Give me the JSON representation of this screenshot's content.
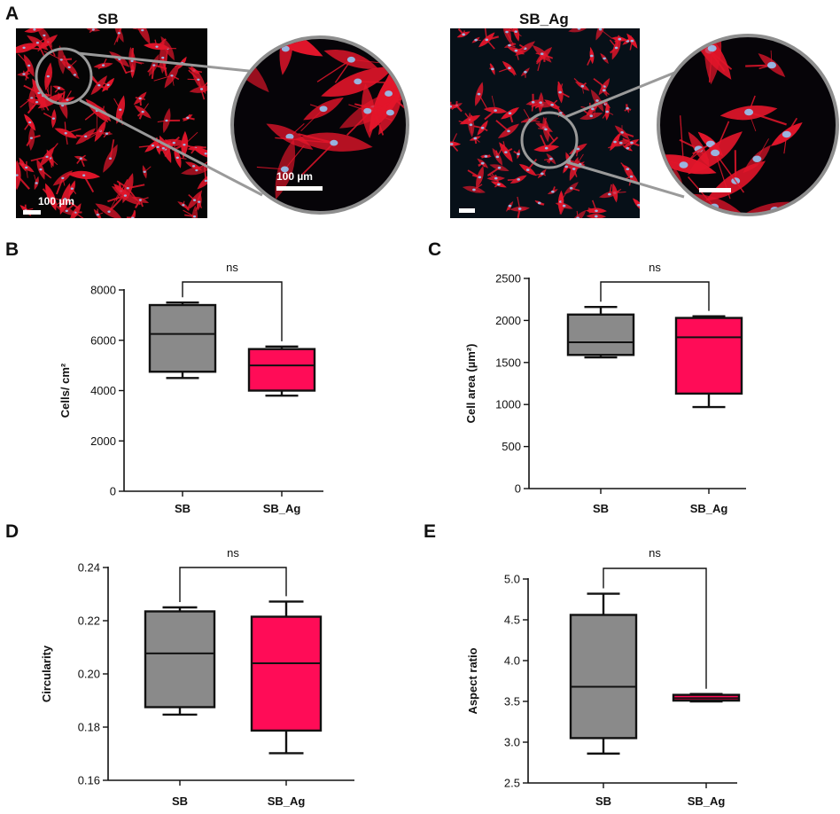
{
  "panels": {
    "A": "A",
    "B": "B",
    "C": "C",
    "D": "D",
    "E": "E"
  },
  "images": {
    "left_title": "SB",
    "right_title": "SB_Ag",
    "scale_label_main": "100 µm",
    "scale_label_zoom": "100 µm"
  },
  "colors": {
    "sb_box": "#8a8a8a",
    "sbag_box": "#ff0c57",
    "stain_red": "#e3162b",
    "stain_nuclei": "#8fd0ff"
  },
  "chart_data": [
    {
      "id": "B",
      "type": "box",
      "categories": [
        "SB",
        "SB_Ag"
      ],
      "ylabel": "Cells/ cm²",
      "ylim": [
        0,
        8000
      ],
      "yticks": [
        0,
        2000,
        4000,
        6000,
        8000
      ],
      "annotation": "ns",
      "series": [
        {
          "category": "SB",
          "min": 4500,
          "q1": 4750,
          "median": 6250,
          "q3": 7400,
          "max": 7500
        },
        {
          "category": "SB_Ag",
          "min": 3800,
          "q1": 4000,
          "median": 5000,
          "q3": 5650,
          "max": 5750
        }
      ]
    },
    {
      "id": "C",
      "type": "box",
      "categories": [
        "SB",
        "SB_Ag"
      ],
      "ylabel": "Cell area (µm²)",
      "ylim": [
        0,
        2500
      ],
      "yticks": [
        0,
        500,
        1000,
        1500,
        2000,
        2500
      ],
      "annotation": "ns",
      "series": [
        {
          "category": "SB",
          "min": 1560,
          "q1": 1590,
          "median": 1740,
          "q3": 2070,
          "max": 2160
        },
        {
          "category": "SB_Ag",
          "min": 970,
          "q1": 1130,
          "median": 1800,
          "q3": 2030,
          "max": 2050
        }
      ]
    },
    {
      "id": "D",
      "type": "box",
      "categories": [
        "SB",
        "SB_Ag"
      ],
      "ylabel": "Circularity",
      "ylim": [
        0.16,
        0.24
      ],
      "yticks": [
        0.16,
        0.18,
        0.2,
        0.22,
        0.24
      ],
      "annotation": "ns",
      "series": [
        {
          "category": "SB",
          "min": 0.1847,
          "q1": 0.1875,
          "median": 0.2077,
          "q3": 0.2235,
          "max": 0.225
        },
        {
          "category": "SB_Ag",
          "min": 0.1702,
          "q1": 0.1787,
          "median": 0.204,
          "q3": 0.2215,
          "max": 0.2272
        }
      ]
    },
    {
      "id": "E",
      "type": "box",
      "categories": [
        "SB",
        "SB_Ag"
      ],
      "ylabel": "Aspect ratio",
      "ylim": [
        2.5,
        5.0
      ],
      "yticks": [
        2.5,
        3.0,
        3.5,
        4.0,
        4.5,
        5.0
      ],
      "annotation": "ns",
      "series": [
        {
          "category": "SB",
          "min": 2.86,
          "q1": 3.05,
          "median": 3.68,
          "q3": 4.56,
          "max": 4.82
        },
        {
          "category": "SB_Ag",
          "min": 3.5,
          "q1": 3.51,
          "median": 3.54,
          "q3": 3.58,
          "max": 3.59
        }
      ]
    }
  ]
}
